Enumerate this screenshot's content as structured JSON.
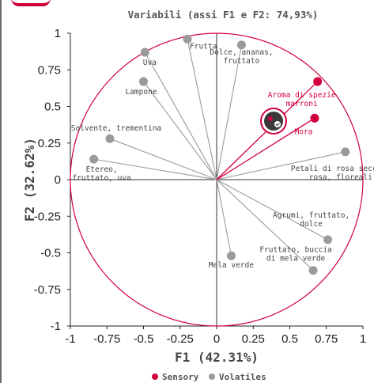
{
  "chart_data": {
    "type": "scatter",
    "title": "Variabili (assi F1 e F2: 74,93%)",
    "xlabel": "F1 (42.31%)",
    "ylabel": "F2 (32.62%)",
    "xlim": [
      -1,
      1
    ],
    "ylim": [
      -1,
      1
    ],
    "xticks": [
      "-1",
      "-0.75",
      "-0.5",
      "-0.25",
      "0",
      "0.25",
      "0.5",
      "0.75",
      "1"
    ],
    "yticks": [
      "1",
      "0.75",
      "0.5",
      "0.25",
      "0",
      "-0.25",
      "-0.5",
      "-0.75",
      "-1"
    ],
    "circle": "correlation circle",
    "legend": "bottom",
    "series": [
      {
        "name": "Sensory",
        "color": "#d1003c",
        "points": [
          {
            "label": "Aroma di spezie marroni",
            "x": 0.69,
            "y": 0.67
          },
          {
            "label": "Mora",
            "x": 0.67,
            "y": 0.42
          }
        ]
      },
      {
        "name": "Volatiles",
        "color": "#9a9a9a",
        "points": [
          {
            "label": "Frutta",
            "x": -0.2,
            "y": 0.96
          },
          {
            "label": "Dolce, ananas, fruttato",
            "x": 0.17,
            "y": 0.92
          },
          {
            "label": "Uva",
            "x": -0.49,
            "y": 0.87
          },
          {
            "label": "Lampone",
            "x": -0.5,
            "y": 0.67
          },
          {
            "label": "Solvente, trementina",
            "x": -0.73,
            "y": 0.28
          },
          {
            "label": "Etereo, fruttato, uva",
            "x": -0.84,
            "y": 0.14
          },
          {
            "label": "Petali di rosa secchi, rosa, floreali",
            "x": 0.88,
            "y": 0.19
          },
          {
            "label": "Agrumi, fruttato, dolce",
            "x": 0.76,
            "y": -0.41
          },
          {
            "label": "Fruttato, buccia di mela verde",
            "x": 0.66,
            "y": -0.62
          },
          {
            "label": "Mela verde",
            "x": 0.1,
            "y": -0.52
          }
        ]
      }
    ]
  }
}
